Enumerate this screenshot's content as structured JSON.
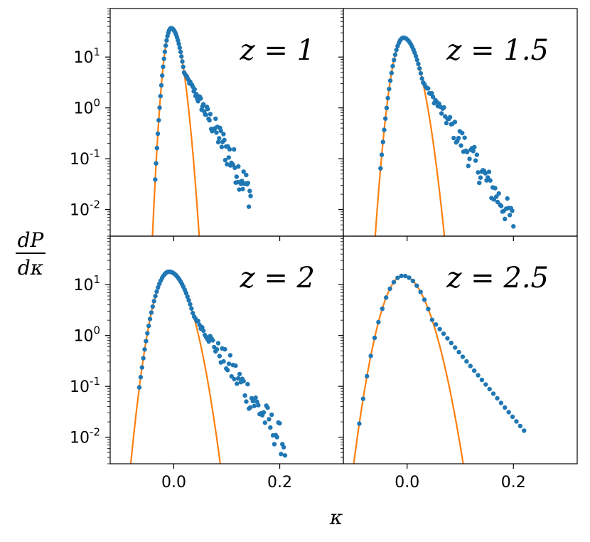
{
  "chart_data": {
    "type": "scatter",
    "xlabel": "κ",
    "ylabel": {
      "numerator": "dP",
      "denominator": "dκ"
    },
    "xlim": [
      -0.12,
      0.32
    ],
    "ylim": [
      0.003,
      90
    ],
    "yscale": "log",
    "x_ticks": [
      {
        "value": 0.0,
        "label": "0.0"
      },
      {
        "value": 0.2,
        "label": "0.2"
      }
    ],
    "y_ticks": [
      {
        "value": 10,
        "base": "10",
        "exp": "1"
      },
      {
        "value": 1,
        "base": "10",
        "exp": "0"
      },
      {
        "value": 0.1,
        "base": "10",
        "exp": "-1"
      },
      {
        "value": 0.01,
        "base": "10",
        "exp": "-2"
      }
    ],
    "colors": {
      "points": "#1f77b4",
      "curve": "#ff7f0e"
    },
    "panels": [
      {
        "label": "z = 1",
        "curve": {
          "peak": 37,
          "mode": -0.005,
          "sigma_left": 0.0081,
          "sigma_right": 0.0122
        },
        "points": {
          "tail_slope": 44,
          "tail_noise": 0.32,
          "x_start": -0.035,
          "x_end": 0.145
        }
      },
      {
        "label": "z = 1.5",
        "curve": {
          "peak": 24,
          "mode": -0.007,
          "sigma_left": 0.0125,
          "sigma_right": 0.0182
        },
        "points": {
          "tail_slope": 37,
          "tail_noise": 0.28,
          "x_start": -0.05,
          "x_end": 0.2
        }
      },
      {
        "label": "z = 2",
        "curve": {
          "peak": 18,
          "mode": -0.009,
          "sigma_left": 0.0173,
          "sigma_right": 0.0232
        },
        "points": {
          "tail_slope": 34,
          "tail_noise": 0.3,
          "x_start": -0.065,
          "x_end": 0.21
        }
      },
      {
        "label": "z = 2.5",
        "curve": {
          "peak": 15,
          "mode": -0.008,
          "sigma_left": 0.0224,
          "sigma_right": 0.0275
        },
        "points": {
          "tail_slope": 29,
          "tail_noise": 0.0,
          "x_start": -0.09,
          "x_end": 0.22
        }
      }
    ]
  }
}
